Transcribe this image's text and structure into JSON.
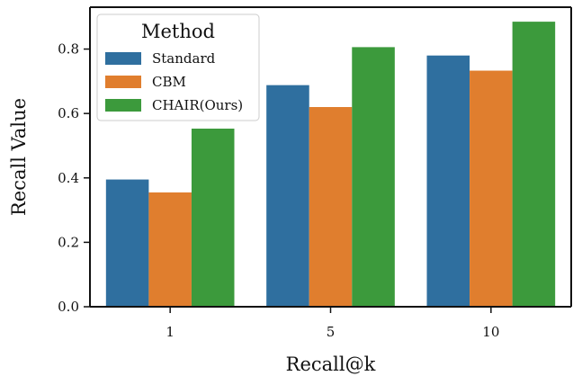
{
  "chart_data": {
    "type": "bar",
    "xlabel": "Recall@k",
    "ylabel": "Recall Value",
    "categories": [
      "1",
      "5",
      "10"
    ],
    "ylim": [
      0.0,
      0.93
    ],
    "yticks": [
      0.0,
      0.2,
      0.4,
      0.6,
      0.8
    ],
    "ytick_labels": [
      "0.0",
      "0.2",
      "0.4",
      "0.6",
      "0.8"
    ],
    "grid": false,
    "legend": {
      "title": "Method",
      "placement": "top-left"
    },
    "series": [
      {
        "name": "Standard",
        "color": "#2f6f9f",
        "values": [
          0.395,
          0.688,
          0.78
        ]
      },
      {
        "name": "CBM",
        "color": "#e07e2e",
        "values": [
          0.355,
          0.62,
          0.733
        ]
      },
      {
        "name": "CHAIR(Ours)",
        "color": "#3c9a3c",
        "values": [
          0.553,
          0.806,
          0.885
        ]
      }
    ]
  }
}
